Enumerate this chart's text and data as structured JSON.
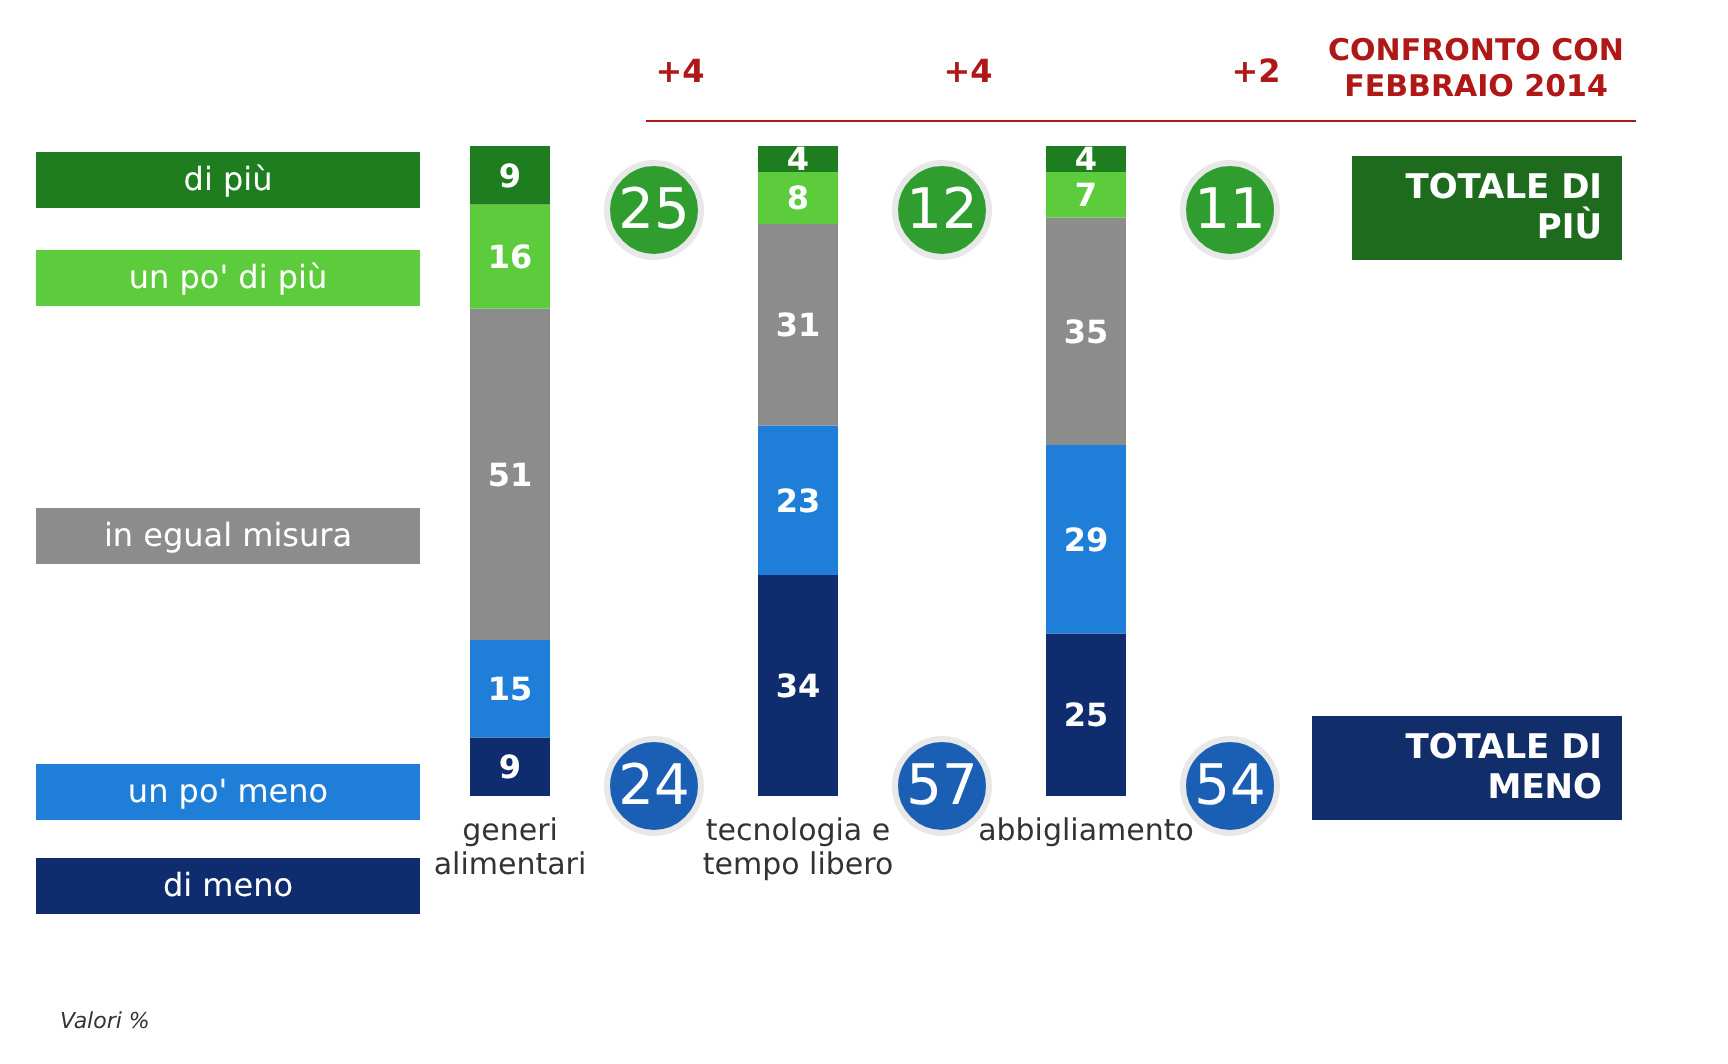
{
  "chart_data": {
    "type": "bar",
    "stacked": true,
    "data_labels": true,
    "legend": "left",
    "categories": [
      "generi alimentari",
      "tecnologia e tempo libero",
      "abbigliamento"
    ],
    "series": [
      {
        "name": "di meno",
        "color": "#0f2d6e",
        "values": [
          9,
          34,
          25
        ]
      },
      {
        "name": "un po' meno",
        "color": "#1f7fd8",
        "values": [
          15,
          23,
          29
        ]
      },
      {
        "name": "in egual misura",
        "color": "#8c8c8c",
        "values": [
          51,
          31,
          35
        ]
      },
      {
        "name": "un po' di più",
        "color": "#5ccc3c",
        "values": [
          16,
          8,
          7
        ]
      },
      {
        "name": "di più",
        "color": "#1e7d1e",
        "values": [
          9,
          4,
          4
        ]
      }
    ],
    "annotations": [
      "25",
      "12",
      "11",
      "24",
      "57",
      "54",
      "+4",
      "+4",
      "+2",
      "CONFRONTO CON FEBBRAIO 2014",
      "TOTALE DI PIÙ",
      "TOTALE DI MENO",
      "Valori %"
    ]
  }
}
